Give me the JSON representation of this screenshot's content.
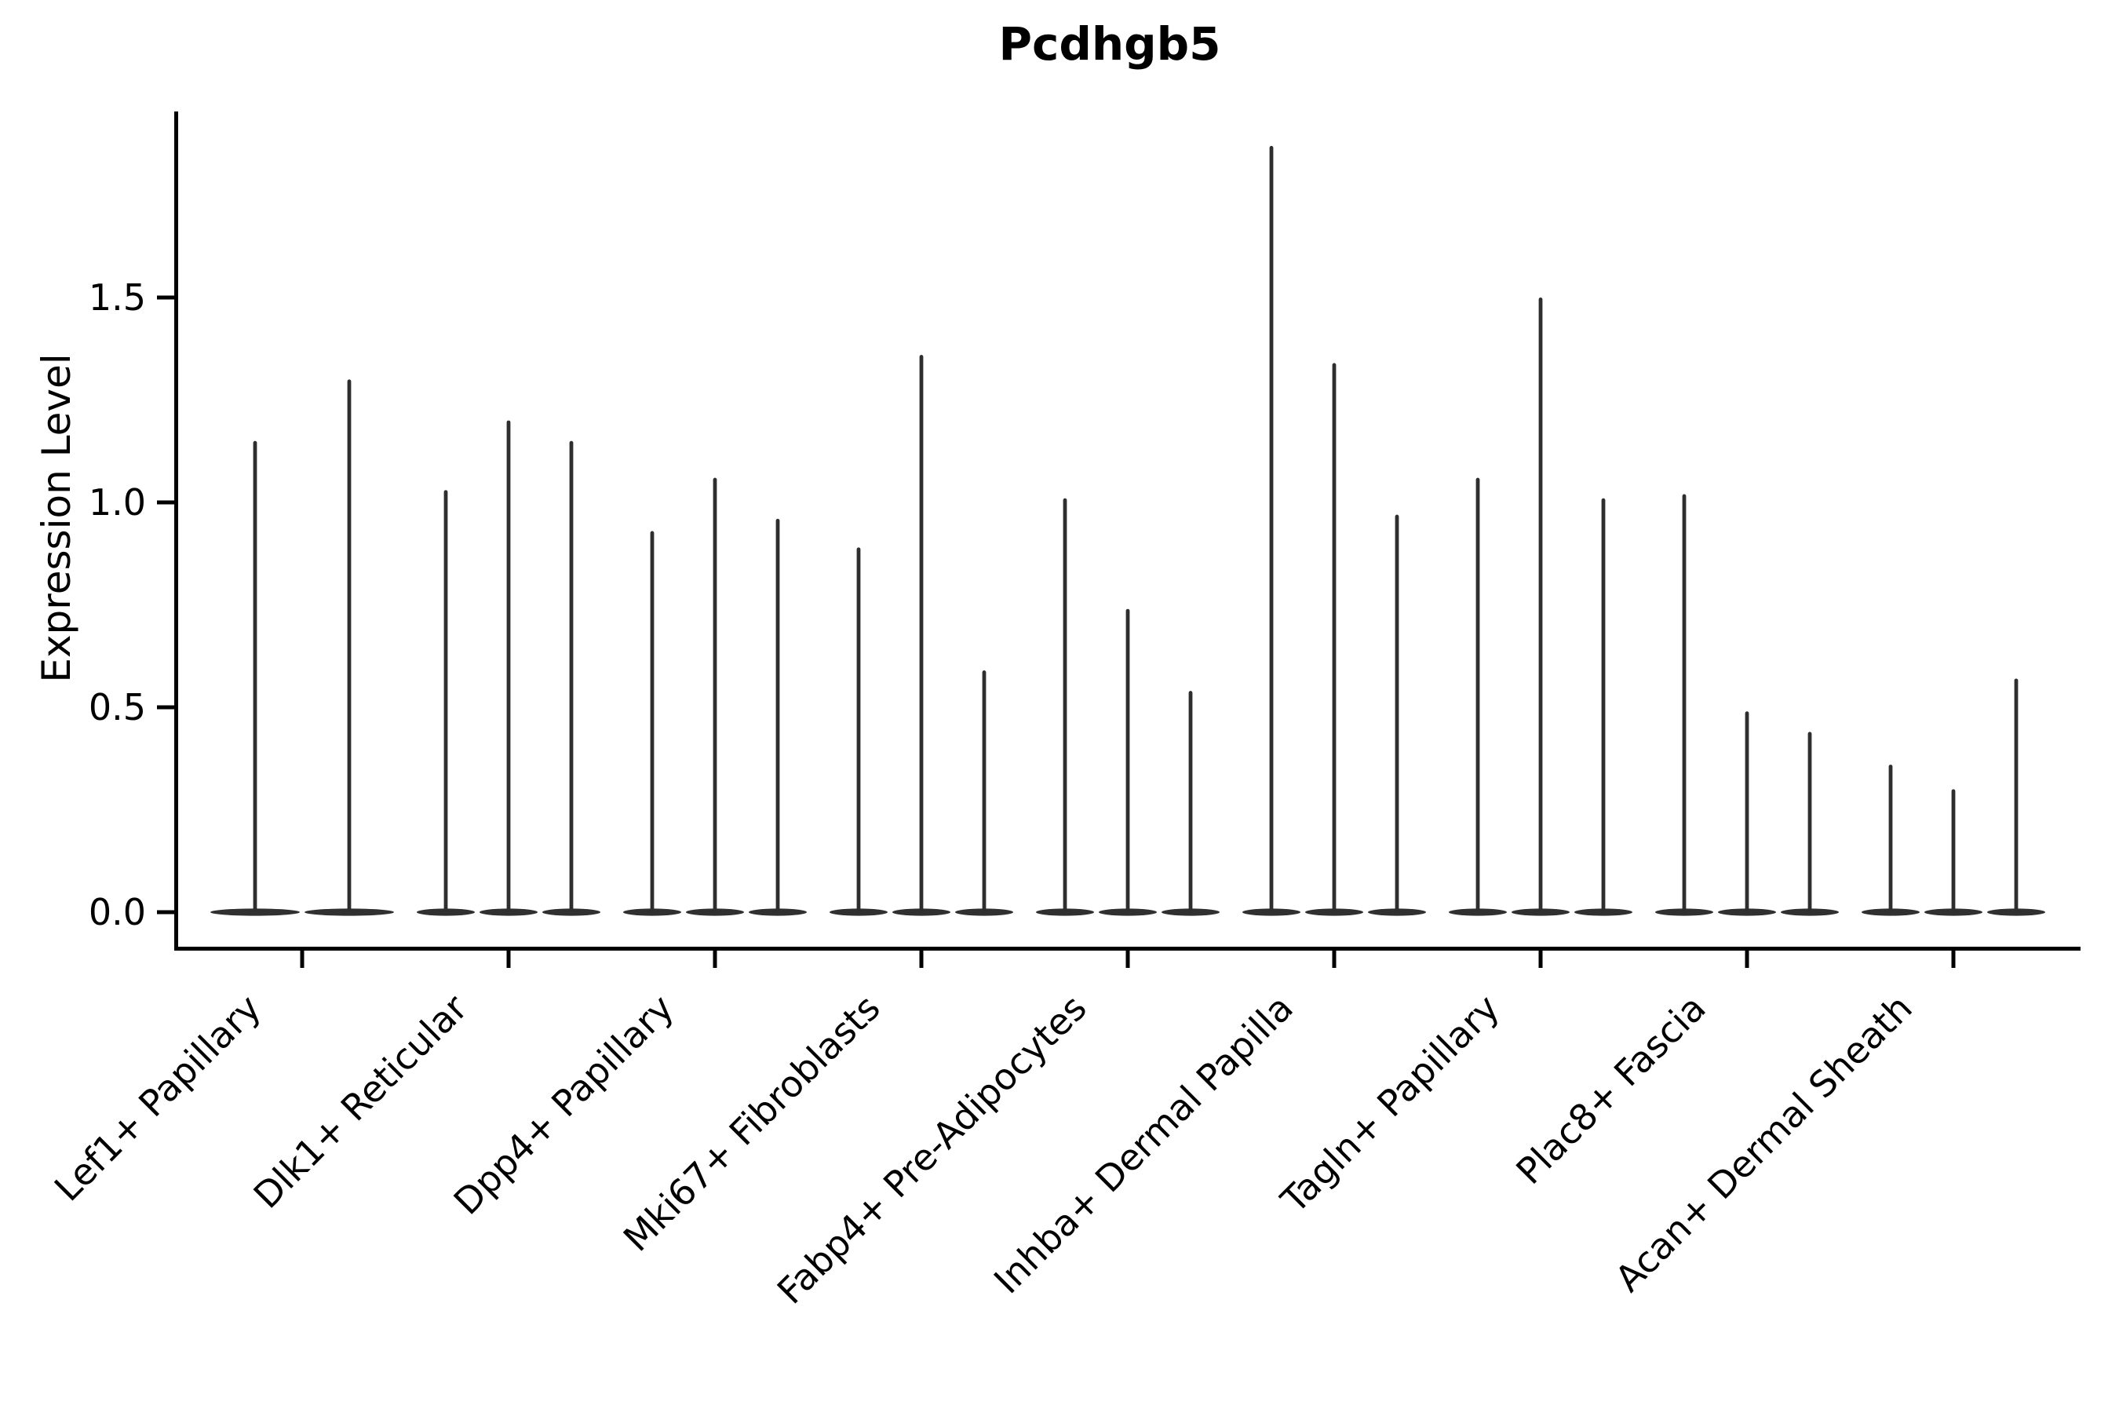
{
  "chart_data": {
    "type": "violin",
    "title": "Pcdhgb5",
    "xlabel": "",
    "ylabel": "Expression Level",
    "ylim": [
      -0.09,
      1.95
    ],
    "yticks": [
      0.0,
      0.5,
      1.0,
      1.5
    ],
    "ytick_labels": [
      "0.0",
      "0.5",
      "1.0",
      "1.5"
    ],
    "grid": false,
    "legend_position": "none",
    "categories": [
      "Lef1+ Papillary",
      "Dlk1+ Reticular",
      "Dpp4+ Papillary",
      "Mki67+ Fibroblasts",
      "Fabp4+ Pre-Adipocytes",
      "Inhba+ Dermal Papilla",
      "Tagln+ Papillary",
      "Plac8+ Fascia",
      "Acan+ Dermal Sheath"
    ],
    "groups": [
      {
        "label": "Lef1+ Papillary",
        "violin_maxima": [
          1.15,
          1.3
        ]
      },
      {
        "label": "Dlk1+ Reticular",
        "violin_maxima": [
          1.03,
          1.2,
          1.15
        ]
      },
      {
        "label": "Dpp4+ Papillary",
        "violin_maxima": [
          0.93,
          1.06,
          0.96
        ]
      },
      {
        "label": "Mki67+ Fibroblasts",
        "violin_maxima": [
          0.89,
          1.36,
          0.59
        ]
      },
      {
        "label": "Fabp4+ Pre-Adipocytes",
        "violin_maxima": [
          1.01,
          0.74,
          0.54
        ]
      },
      {
        "label": "Inhba+ Dermal Papilla",
        "violin_maxima": [
          1.87,
          1.34,
          0.97
        ]
      },
      {
        "label": "Tagln+ Papillary",
        "violin_maxima": [
          1.06,
          1.5,
          1.01
        ]
      },
      {
        "label": "Plac8+ Fascia",
        "violin_maxima": [
          1.02,
          0.49,
          0.44
        ]
      },
      {
        "label": "Acan+ Dermal Sheath",
        "violin_maxima": [
          0.36,
          0.3,
          0.57
        ]
      }
    ],
    "colors": {
      "violin": "#2e2e2e",
      "violin_base": "#303030",
      "axis": "#000000",
      "text": "#000000",
      "background": "#ffffff"
    }
  }
}
